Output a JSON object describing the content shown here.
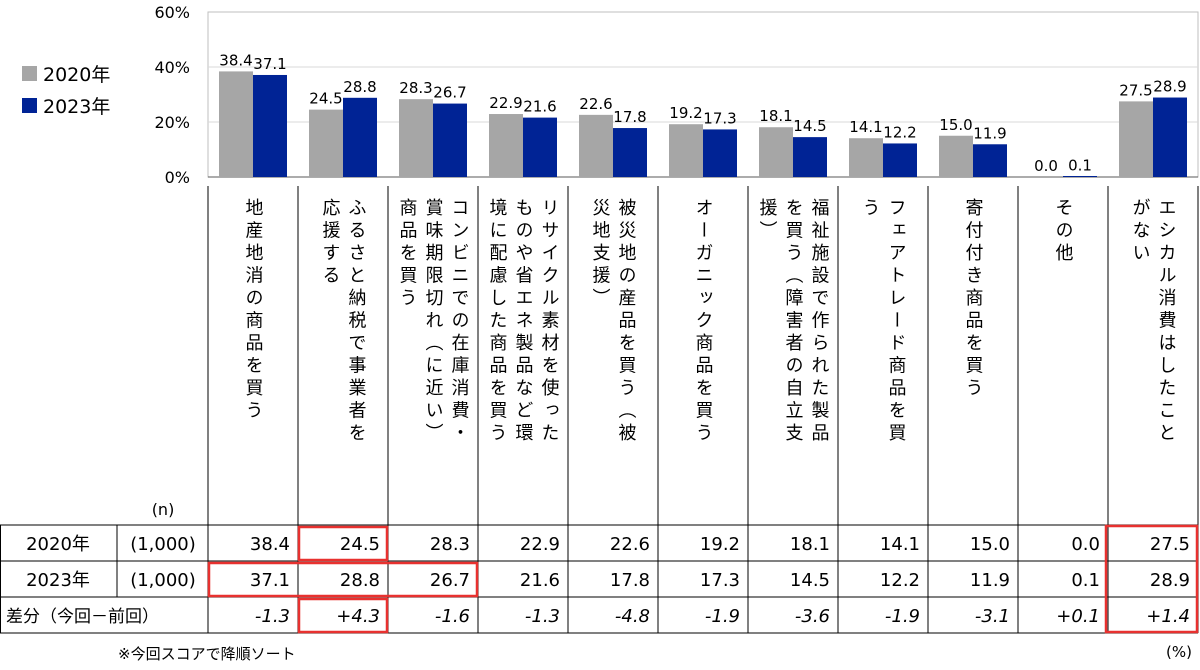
{
  "chart_data": {
    "type": "bar",
    "yticks": [
      "0%",
      "20%",
      "40%",
      "60%"
    ],
    "ylim": [
      0,
      60
    ],
    "categories": [
      "地産地消の商品を買う",
      "ふるさと納税で事業者を応援する",
      "コンビニでの在庫消費・賞味期限切れ（に近い）商品を買う",
      "リサイクル素材を使ったものや省エネ製品など環境に配慮した商品を買う",
      "被災地の産品を買う（被災地支援）",
      "オーガニック商品を買う",
      "福祉施設で作られた製品を買う（障害者の自立支援）",
      "フェアトレード商品を買う",
      "寄付付き商品を買う",
      "その他",
      "エシカル消費はしたことがない"
    ],
    "category_lines": [
      [
        "地産地消の商品を買う"
      ],
      [
        "ふるさと納税で事業者を",
        "応援する"
      ],
      [
        "コンビニでの在庫消費・",
        "賞味期限切れ（に近い）",
        "商品を買う"
      ],
      [
        "リサイクル素材を使った",
        "ものや省エネ製品など環",
        "境に配慮した商品を買う"
      ],
      [
        "被災地の産品を買う（被",
        "災地支援）"
      ],
      [
        "オーガニック商品を買う"
      ],
      [
        "福祉施設で作られた製品",
        "を買う（障害者の自立支",
        "援）"
      ],
      [
        "フェアトレード商品を買",
        "う"
      ],
      [
        "寄付付き商品を買う"
      ],
      [
        "その他"
      ],
      [
        "エシカル消費はしたこと",
        "がない"
      ]
    ],
    "series": [
      {
        "name": "2020年",
        "color": "#a6a6a6",
        "values": [
          38.4,
          24.5,
          28.3,
          22.9,
          22.6,
          19.2,
          18.1,
          14.1,
          15.0,
          0.0,
          27.5
        ]
      },
      {
        "name": "2023年",
        "color": "#002395",
        "values": [
          37.1,
          28.8,
          26.7,
          21.6,
          17.8,
          17.3,
          14.5,
          12.2,
          11.9,
          0.1,
          28.9
        ]
      }
    ],
    "data_labels": {
      "2020": [
        "38.4",
        "24.5",
        "28.3",
        "22.9",
        "22.6",
        "19.2",
        "18.1",
        "14.1",
        "15.0",
        "0.0",
        "27.5"
      ],
      "2023": [
        "37.1",
        "28.8",
        "26.7",
        "21.6",
        "17.8",
        "17.3",
        "14.5",
        "12.2",
        "11.9",
        "0.1",
        "28.9"
      ]
    },
    "table": {
      "n_header": "(n)",
      "rows": [
        {
          "label": "2020年",
          "n": "(1,000)",
          "values": [
            "38.4",
            "24.5",
            "28.3",
            "22.9",
            "22.6",
            "19.2",
            "18.1",
            "14.1",
            "15.0",
            "0.0",
            "27.5"
          ]
        },
        {
          "label": "2023年",
          "n": "(1,000)",
          "values": [
            "37.1",
            "28.8",
            "26.7",
            "21.6",
            "17.8",
            "17.3",
            "14.5",
            "12.2",
            "11.9",
            "0.1",
            "28.9"
          ]
        },
        {
          "label": "差分（今回－前回）",
          "n": "",
          "values": [
            "-1.3",
            "+4.3",
            "-1.6",
            "-1.3",
            "-4.8",
            "-1.9",
            "-3.6",
            "-1.9",
            "-3.1",
            "+0.1",
            "+1.4"
          ]
        }
      ],
      "highlight_color": "#e8312f"
    },
    "legend": {
      "placement": "left"
    }
  },
  "note": "※今回スコアで降順ソート",
  "unit": "(%)"
}
